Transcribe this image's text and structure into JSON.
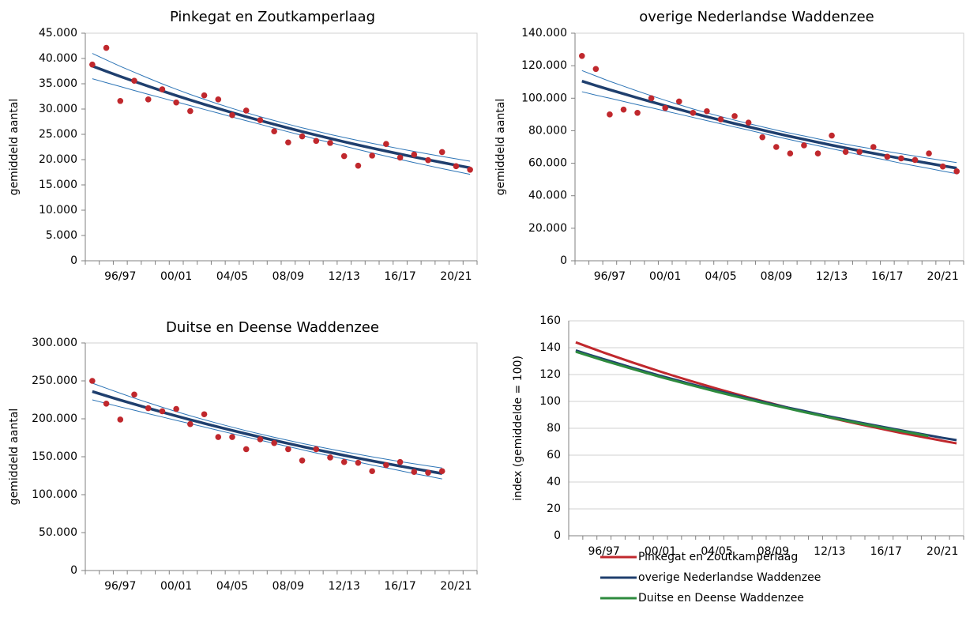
{
  "chart_data": [
    {
      "type": "line",
      "title": "Pinkegat en Zoutkamperlaag",
      "y_label": "gemiddeld aantal",
      "categories": [
        null,
        null,
        "96/97",
        null,
        null,
        null,
        "00/01",
        null,
        null,
        null,
        "04/05",
        null,
        null,
        null,
        "08/09",
        null,
        null,
        null,
        "12/13",
        null,
        null,
        null,
        "16/17",
        null,
        null,
        null,
        "20/21",
        null
      ],
      "ylim": [
        0,
        45000
      ],
      "yticks": [
        0,
        {
          "value": 5000,
          "label": "5.000"
        },
        {
          "value": 10000,
          "label": "10.000"
        },
        {
          "value": 15000,
          "label": "15.000"
        },
        {
          "value": 20000,
          "label": "20.000"
        },
        {
          "value": 25000,
          "label": "25.000"
        },
        {
          "value": 30000,
          "label": "30.000"
        },
        {
          "value": 35000,
          "label": "35.000"
        },
        {
          "value": 40000,
          "label": "40.000"
        },
        {
          "value": 45000,
          "label": "45.000"
        }
      ],
      "series": [
        {
          "type": "line",
          "color": "#2e75b6",
          "width": 1,
          "values": [
            41000,
            39710,
            38450,
            37270,
            36110,
            34980,
            33920,
            32890,
            31930,
            31000,
            30130,
            29290,
            28480,
            27730,
            27000,
            26290,
            25650,
            24980,
            24380,
            23790,
            23230,
            22680,
            22140,
            21620,
            21120,
            20630,
            20150,
            19690
          ]
        },
        {
          "type": "line",
          "color": "#2e75b6",
          "width": 1,
          "values": [
            36000,
            35210,
            34450,
            33670,
            32910,
            32180,
            31420,
            30690,
            29930,
            29200,
            28430,
            27690,
            26980,
            26230,
            25500,
            24790,
            24050,
            23380,
            22680,
            21990,
            21330,
            20680,
            20040,
            19420,
            18820,
            18230,
            17650,
            17090
          ]
        },
        {
          "type": "line",
          "color": "#1f3f6e",
          "width": 3.5,
          "values": [
            38500,
            37460,
            36450,
            35470,
            34510,
            33580,
            32670,
            31790,
            30930,
            30100,
            29280,
            28490,
            27730,
            26980,
            26250,
            25540,
            24850,
            24180,
            23530,
            22890,
            22280,
            21680,
            21090,
            20520,
            19970,
            19430,
            18900,
            18390
          ]
        },
        {
          "type": "scatter",
          "color": "#c0282d",
          "values": [
            38800,
            42100,
            31600,
            35600,
            31900,
            33900,
            31300,
            29600,
            32700,
            31900,
            28800,
            29700,
            27800,
            25600,
            23400,
            24600,
            23700,
            23300,
            20700,
            18800,
            20800,
            23100,
            20400,
            21000,
            19900,
            21500,
            18700,
            18000
          ]
        }
      ]
    },
    {
      "type": "line",
      "title": "overige Nederlandse Waddenzee",
      "y_label": "gemiddeld aantal",
      "categories": [
        null,
        null,
        "96/97",
        null,
        null,
        null,
        "00/01",
        null,
        null,
        null,
        "04/05",
        null,
        null,
        null,
        "08/09",
        null,
        null,
        null,
        "12/13",
        null,
        null,
        null,
        "16/17",
        null,
        null,
        null,
        "20/21",
        null
      ],
      "ylim": [
        0,
        140000
      ],
      "yticks": [
        0,
        {
          "value": 20000,
          "label": "20.000"
        },
        {
          "value": 40000,
          "label": "40.000"
        },
        {
          "value": 60000,
          "label": "60.000"
        },
        {
          "value": 80000,
          "label": "80.000"
        },
        {
          "value": 100000,
          "label": "100.000"
        },
        {
          "value": 120000,
          "label": "120.000"
        },
        {
          "value": 140000,
          "label": "140.000"
        }
      ],
      "series": [
        {
          "type": "line",
          "color": "#2e75b6",
          "width": 1,
          "values": [
            117000,
            113700,
            110400,
            107400,
            104400,
            101500,
            98700,
            96000,
            93400,
            91000,
            88700,
            86500,
            84400,
            82400,
            80400,
            78500,
            76800,
            75000,
            73300,
            71700,
            70200,
            68700,
            67200,
            65800,
            64400,
            63000,
            61700,
            60400
          ]
        },
        {
          "type": "line",
          "color": "#2e75b6",
          "width": 1,
          "values": [
            104000,
            101900,
            100000,
            98000,
            96000,
            94100,
            92100,
            90200,
            88200,
            86200,
            84300,
            82300,
            80400,
            78400,
            76400,
            74500,
            72600,
            70800,
            68900,
            67100,
            65200,
            63500,
            61800,
            60000,
            58400,
            56800,
            55100,
            53600
          ]
        },
        {
          "type": "line",
          "color": "#1f3f6e",
          "width": 3.5,
          "values": [
            110500,
            107800,
            105200,
            102700,
            100200,
            97800,
            95400,
            93100,
            90800,
            88600,
            86500,
            84400,
            82400,
            80400,
            78400,
            76500,
            74700,
            72900,
            71100,
            69400,
            67700,
            66100,
            64500,
            62900,
            61400,
            59900,
            58400,
            57000
          ]
        },
        {
          "type": "scatter",
          "color": "#c0282d",
          "values": [
            126000,
            118000,
            90000,
            93000,
            91000,
            100000,
            94000,
            98000,
            91000,
            92000,
            87000,
            89000,
            85000,
            76000,
            70000,
            66000,
            71000,
            66000,
            77000,
            67000,
            67000,
            70000,
            64000,
            63000,
            62000,
            66000,
            58000,
            55000
          ]
        }
      ]
    },
    {
      "type": "line",
      "title": "Duitse en Deense Waddenzee",
      "y_label": "gemiddeld aantal",
      "categories": [
        null,
        null,
        "96/97",
        null,
        null,
        null,
        "00/01",
        null,
        null,
        null,
        "04/05",
        null,
        null,
        null,
        "08/09",
        null,
        null,
        null,
        "12/13",
        null,
        null,
        null,
        "16/17",
        null,
        null,
        null,
        "20/21",
        null
      ],
      "ylim": [
        0,
        300000
      ],
      "yticks": [
        0,
        {
          "value": 50000,
          "label": "50.000"
        },
        {
          "value": 100000,
          "label": "100.000"
        },
        {
          "value": 150000,
          "label": "150.000"
        },
        {
          "value": 200000,
          "label": "200.000"
        },
        {
          "value": 250000,
          "label": "250.000"
        },
        {
          "value": 300000,
          "label": "300.000"
        }
      ],
      "series": [
        {
          "type": "line",
          "color": "#2e75b6",
          "width": 1,
          "values": [
            247000,
            240300,
            233700,
            227300,
            221200,
            215200,
            209500,
            204000,
            198800,
            193800,
            189000,
            184300,
            179900,
            175600,
            171600,
            167600,
            163800,
            160200,
            156600,
            153200,
            149900,
            146800,
            143600,
            140700,
            137900,
            135100,
            null,
            null
          ]
        },
        {
          "type": "line",
          "color": "#2e75b6",
          "width": 1,
          "values": [
            225000,
            220300,
            215700,
            211300,
            206800,
            202400,
            197900,
            193600,
            189200,
            184800,
            180400,
            176100,
            171900,
            167600,
            163400,
            159200,
            155000,
            151000,
            147000,
            143000,
            139100,
            135400,
            131600,
            127900,
            124300,
            120700,
            null,
            null
          ]
        },
        {
          "type": "line",
          "color": "#1f3f6e",
          "width": 3.5,
          "values": [
            236000,
            230300,
            224700,
            219300,
            214000,
            208800,
            203700,
            198800,
            194000,
            189300,
            184700,
            180200,
            175900,
            171600,
            167500,
            163400,
            159400,
            155600,
            151800,
            148100,
            144500,
            141100,
            137600,
            134300,
            131100,
            127900,
            null,
            null
          ]
        },
        {
          "type": "scatter",
          "color": "#c0282d",
          "values": [
            250000,
            220000,
            199000,
            232000,
            214000,
            210000,
            213000,
            193000,
            206000,
            176000,
            176000,
            160000,
            173000,
            168000,
            160000,
            145000,
            160000,
            149000,
            143000,
            142000,
            131000,
            139000,
            143000,
            130000,
            129000,
            131000,
            null,
            null
          ]
        }
      ]
    },
    {
      "type": "line",
      "y_label": "index (gemiddelde = 100)",
      "categories": [
        null,
        null,
        "96/97",
        null,
        null,
        null,
        "00/01",
        null,
        null,
        null,
        "04/05",
        null,
        null,
        null,
        "08/09",
        null,
        null,
        null,
        "12/13",
        null,
        null,
        null,
        "16/17",
        null,
        null,
        null,
        "20/21",
        null
      ],
      "ylim": [
        0,
        160
      ],
      "yticks": [
        0,
        20,
        40,
        60,
        80,
        100,
        120,
        140,
        160
      ],
      "grid": true,
      "legend": "bottom",
      "series": [
        {
          "name": "Pinkegat en Zoutkamperlaag",
          "type": "line",
          "color": "#c0282d",
          "width": 3,
          "values": [
            144.0,
            140.1,
            136.3,
            132.7,
            129.1,
            125.6,
            122.2,
            118.9,
            115.7,
            112.6,
            109.5,
            106.6,
            103.7,
            100.9,
            98.2,
            95.5,
            92.9,
            90.4,
            88.0,
            85.6,
            83.3,
            81.1,
            78.9,
            76.7,
            74.7,
            72.7,
            70.7,
            68.8
          ]
        },
        {
          "name": "overige Nederlandse Waddenzee",
          "type": "line",
          "color": "#1f3f6e",
          "width": 3,
          "values": [
            138.0,
            134.6,
            131.4,
            128.3,
            125.1,
            122.1,
            119.1,
            116.3,
            113.4,
            110.7,
            108.0,
            105.4,
            102.9,
            100.4,
            97.9,
            95.5,
            93.3,
            91.0,
            88.8,
            86.7,
            84.6,
            82.6,
            80.6,
            78.6,
            76.7,
            74.8,
            72.9,
            71.2
          ]
        },
        {
          "name": "Duitse en Deense Waddenzee",
          "type": "line",
          "color": "#2e8b3e",
          "width": 3,
          "values": [
            137.0,
            133.7,
            130.4,
            127.3,
            124.2,
            121.2,
            118.2,
            115.4,
            112.6,
            109.9,
            107.2,
            104.6,
            102.1,
            99.6,
            97.2,
            94.9,
            92.5,
            90.3,
            88.1,
            86.0,
            83.9,
            81.9,
            79.9,
            78.0,
            76.1,
            74.2,
            null,
            null
          ]
        }
      ]
    }
  ]
}
